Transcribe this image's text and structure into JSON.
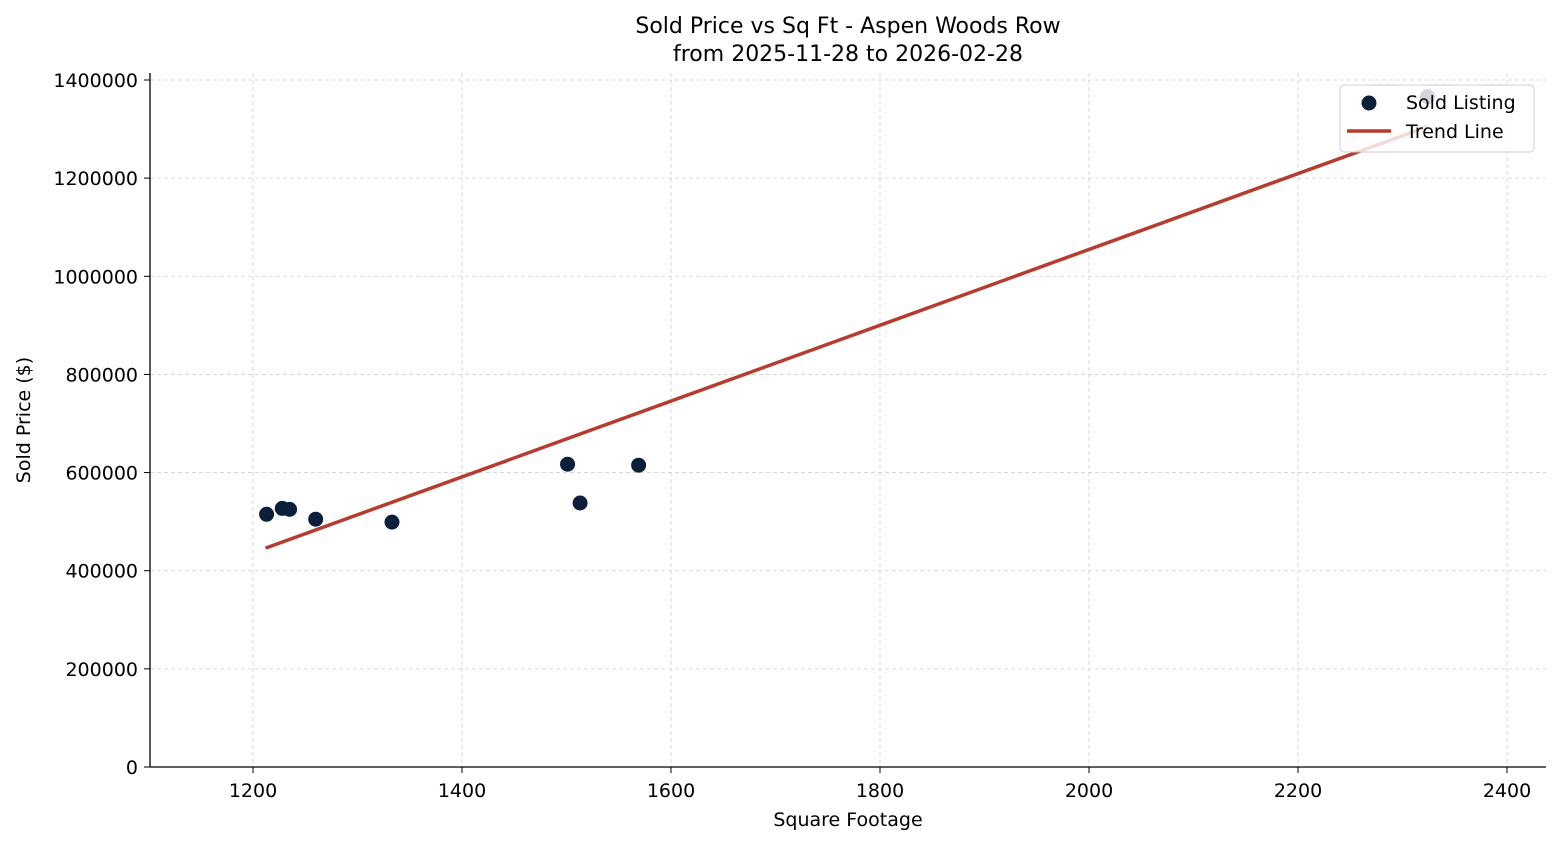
{
  "chart_data": {
    "type": "scatter",
    "title": "Sold Price vs Sq Ft - Aspen Woods Row",
    "subtitle": "from 2025-11-28 to 2026-02-28",
    "xlabel": "Square Footage",
    "ylabel": "Sold Price ($)",
    "xlim": [
      1100,
      2440
    ],
    "ylim": [
      0,
      1410000
    ],
    "x_ticks": [
      1200,
      1400,
      1600,
      1800,
      2000,
      2200,
      2400
    ],
    "y_ticks": [
      0,
      200000,
      400000,
      600000,
      800000,
      1000000,
      1200000,
      1400000
    ],
    "grid": true,
    "legend_position": "upper right",
    "series": [
      {
        "name": "Sold Listing",
        "kind": "scatter",
        "color": "#0b1f3a",
        "points": [
          {
            "x": 1213,
            "y": 515000
          },
          {
            "x": 1228,
            "y": 527000
          },
          {
            "x": 1235,
            "y": 525000
          },
          {
            "x": 1260,
            "y": 505000
          },
          {
            "x": 1333,
            "y": 499000
          },
          {
            "x": 1501,
            "y": 617000
          },
          {
            "x": 1513,
            "y": 538000
          },
          {
            "x": 1569,
            "y": 615000
          },
          {
            "x": 2324,
            "y": 1366000
          }
        ]
      },
      {
        "name": "Trend Line",
        "kind": "line",
        "color": "#b83c2e",
        "points": [
          {
            "x": 1212,
            "y": 446000
          },
          {
            "x": 2324,
            "y": 1305000
          }
        ]
      }
    ]
  }
}
